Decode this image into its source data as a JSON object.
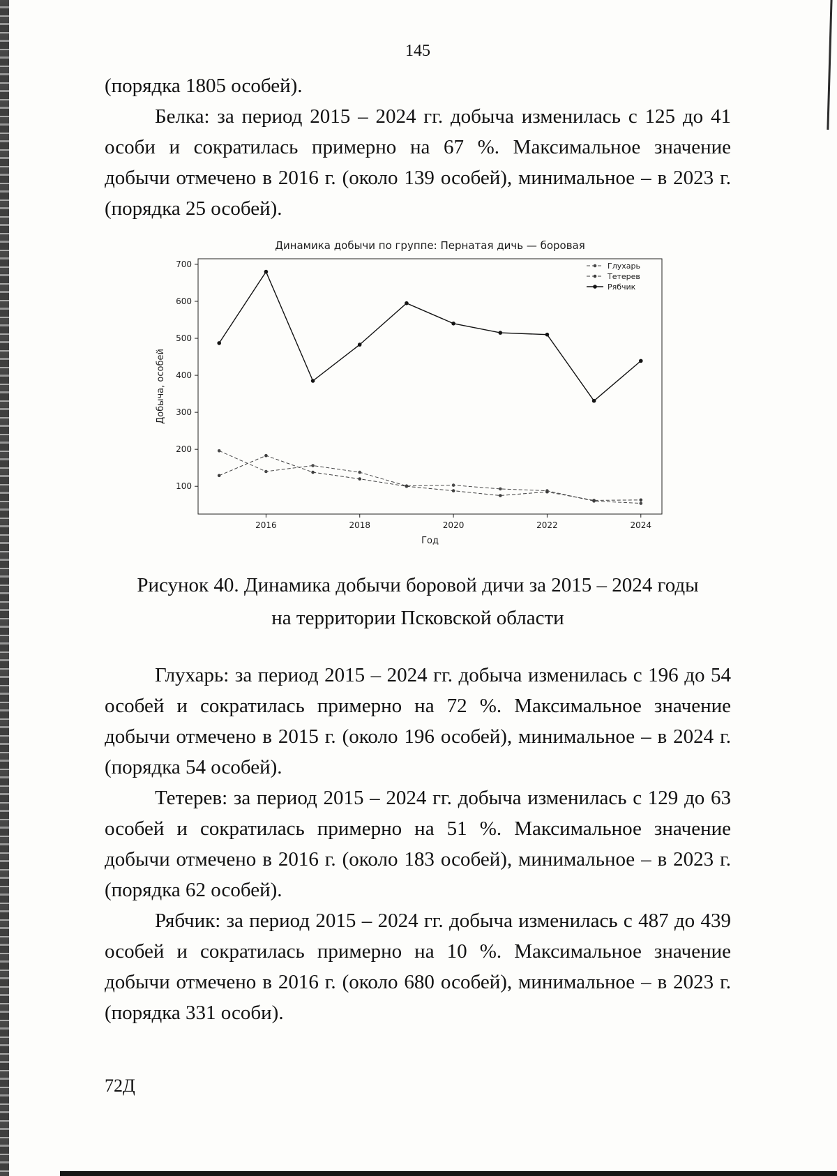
{
  "page": {
    "number": "145",
    "footer": "72Д"
  },
  "paragraphs": {
    "intro": "(порядка 1805 особей).",
    "belka": "Белка: за период 2015 – 2024 гг. добыча изменилась с 125 до 41 особи и сократилась примерно на 67 %. Максимальное значение добычи отмечено в 2016 г. (около 139 особей), минимальное – в 2023 г. (порядка 25 особей).",
    "glukhar": "Глухарь: за период 2015 – 2024 гг. добыча изменилась с 196 до 54 особей и сократилась примерно на 72 %. Максимальное значение добычи отмечено в 2015 г. (около 196 особей), минимальное – в 2024 г. (порядка 54 особей).",
    "teterev": "Тетерев: за период 2015 – 2024 гг. добыча изменилась с 129 до 63 особей и сократилась примерно на 51 %. Максимальное значение добычи отмечено в 2016 г. (около 183 особей), минимальное – в 2023 г. (порядка 62 особей).",
    "ryabchik": "Рябчик: за период 2015 – 2024 гг. добыча изменилась с 487 до 439 особей и сократилась примерно на 10 %. Максимальное значение добычи отмечено в 2016 г. (около 680 особей), минимальное – в 2023 г. (порядка 331 особи)."
  },
  "figure_caption": {
    "line1": "Рисунок 40. Динамика добычи боровой дичи за 2015 – 2024 годы",
    "line2": "на территории Псковской области"
  },
  "chart_data": {
    "type": "line",
    "title": "Динамика добычи по группе: Пернатая дичь — боровая",
    "xlabel": "Год",
    "ylabel": "Добыча, особей",
    "x": [
      2015,
      2016,
      2017,
      2018,
      2019,
      2020,
      2021,
      2022,
      2023,
      2024
    ],
    "series": [
      {
        "name": "Глухарь",
        "values": [
          196,
          140,
          156,
          138,
          101,
          103,
          93,
          88,
          60,
          54
        ],
        "color": "#4a4a4a",
        "dash": "5 3",
        "width": 1,
        "marker_r": 2.3
      },
      {
        "name": "Тетерев",
        "values": [
          129,
          183,
          138,
          120,
          100,
          88,
          75,
          85,
          62,
          63
        ],
        "color": "#3d3d3d",
        "dash": "5 3",
        "width": 1,
        "marker_r": 2.3
      },
      {
        "name": "Рябчик",
        "values": [
          487,
          680,
          385,
          483,
          595,
          540,
          515,
          510,
          331,
          439
        ],
        "color": "#141414",
        "dash": null,
        "width": 1.4,
        "marker_r": 2.8
      }
    ],
    "yticks": [
      100,
      200,
      300,
      400,
      500,
      600,
      700
    ],
    "xticks": [
      2016,
      2018,
      2020,
      2022,
      2024
    ],
    "ylim": [
      25,
      715
    ],
    "xlim": [
      2014.55,
      2024.45
    ],
    "grid": false,
    "legend_position": "top-right"
  }
}
